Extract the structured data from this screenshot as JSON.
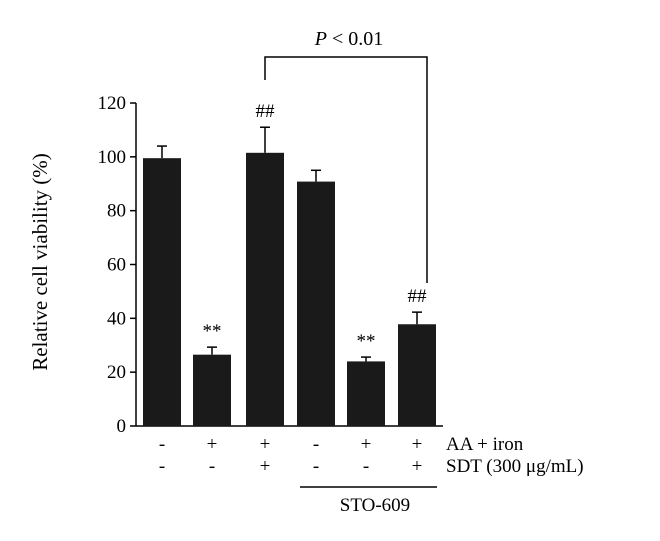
{
  "chart_data": {
    "type": "bar",
    "ylabel": "Relative cell viability (%)",
    "ylim": [
      0,
      120
    ],
    "yticks": [
      0,
      20,
      40,
      60,
      80,
      100,
      120
    ],
    "values": [
      99.5,
      26.5,
      101.5,
      90.8,
      24.0,
      37.8
    ],
    "errors": [
      4.5,
      2.8,
      9.5,
      4.2,
      1.6,
      4.5
    ],
    "bar_color": "#1a1a1a",
    "annotations": [
      "",
      "**",
      "##",
      "",
      "**",
      "##"
    ],
    "conditions": [
      {
        "label": "AA + iron",
        "marks": [
          "-",
          "+",
          "+",
          "-",
          "+",
          "+"
        ]
      },
      {
        "label": "SDT (300 μg/mL)",
        "marks": [
          "-",
          "-",
          "+",
          "-",
          "-",
          "+"
        ]
      }
    ],
    "group_label": "STO-609",
    "comparison": {
      "label": "P < 0.01",
      "p_letter": "P",
      "rest": " < 0.01"
    }
  }
}
